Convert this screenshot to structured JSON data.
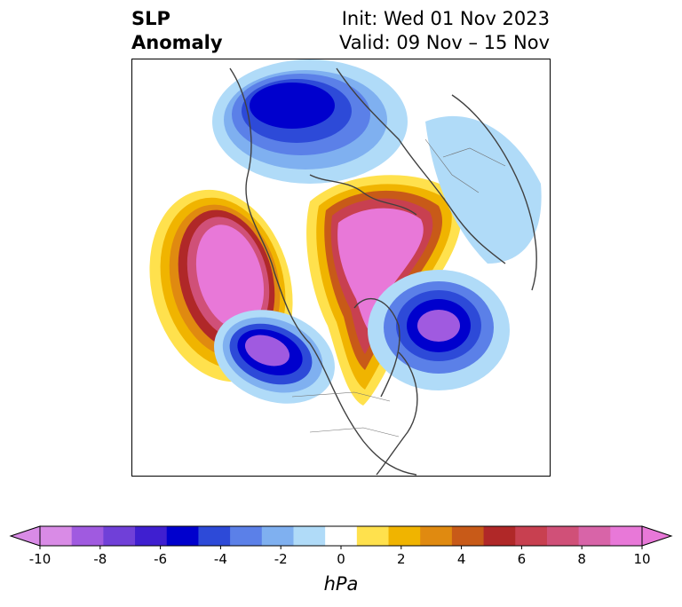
{
  "header": {
    "title": "SLP",
    "subtitle": "Anomaly",
    "init": "Init: Wed 01 Nov 2023",
    "valid": "Valid: 09 Nov – 15 Nov"
  },
  "map": {
    "projection": "north-polar-stereographic",
    "region": "North America / Arctic",
    "field": "sea level pressure anomaly"
  },
  "colorbar": {
    "units": "hPa",
    "min": -10,
    "max": 10,
    "extend": "both",
    "tick_labels": [
      "-10",
      "-8",
      "-6",
      "-4",
      "-2",
      "0",
      "2",
      "4",
      "6",
      "8",
      "10"
    ],
    "tick_values": [
      -10,
      -8,
      -6,
      -4,
      -2,
      0,
      2,
      4,
      6,
      8,
      10
    ],
    "colors": [
      "#d98be6",
      "#a05ae0",
      "#7040d8",
      "#3f1fd0",
      "#0000cd",
      "#2d4ad8",
      "#5b80e8",
      "#7fb0f0",
      "#b0dbf8",
      "#ffffff",
      "#ffe14d",
      "#f0b400",
      "#e08a10",
      "#c85a18",
      "#b02828",
      "#c84050",
      "#d05078",
      "#d864a8",
      "#e878d8"
    ]
  }
}
